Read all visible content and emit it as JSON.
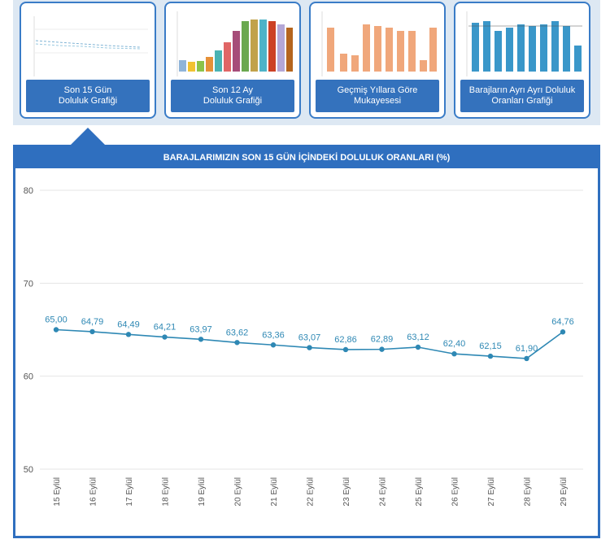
{
  "tabs": [
    {
      "label": "Son 15 Gün\nDoluluk Grafiği"
    },
    {
      "label": "Son 12 Ay\nDoluluk Grafiği"
    },
    {
      "label": "Geçmiş Yıllara Göre\nMukayesesi"
    },
    {
      "label": "Barajların Ayrı Ayrı Doluluk\nOranları Grafiği"
    }
  ],
  "colors": {
    "accent": "#2f6fbf",
    "line": "#2e88b4",
    "grid": "#e4e4e4"
  },
  "chart_data": {
    "type": "line",
    "title": "BARAJLARIMIZIN SON 15 GÜN İÇİNDEKİ DOLULUK ORANLARI (%)",
    "categories": [
      "15 Eylül",
      "16 Eylül",
      "17 Eylül",
      "18 Eylül",
      "19 Eylül",
      "20 Eylül",
      "21 Eylül",
      "22 Eylül",
      "23 Eylül",
      "24 Eylül",
      "25 Eylül",
      "26 Eylül",
      "27 Eylül",
      "28 Eylül",
      "29 Eylül"
    ],
    "values": [
      65.0,
      64.79,
      64.49,
      64.21,
      63.97,
      63.62,
      63.36,
      63.07,
      62.86,
      62.89,
      63.12,
      62.4,
      62.15,
      61.9,
      64.76
    ],
    "value_labels": [
      "65,00",
      "64,79",
      "64,49",
      "64,21",
      "63,97",
      "63,62",
      "63,36",
      "63,07",
      "62,86",
      "62,89",
      "63,12",
      "62,40",
      "62,15",
      "61,90",
      "64,76"
    ],
    "ylim": [
      50,
      80
    ],
    "yticks": [
      50,
      60,
      70,
      80
    ],
    "grid": true
  }
}
